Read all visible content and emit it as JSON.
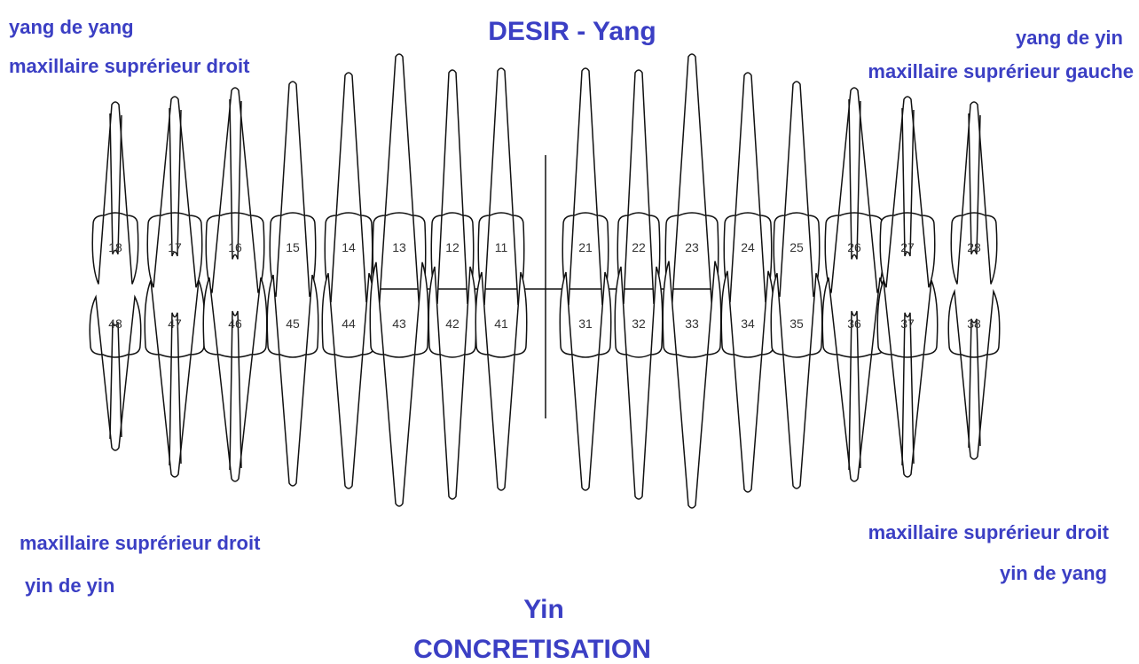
{
  "title": "DESIR - Yang",
  "top_left": [
    "yang de yang",
    "maxillaire suprérieur droit"
  ],
  "top_right": [
    "yang de yin",
    "maxillaire suprérieur gauche"
  ],
  "bottom_left": [
    "maxillaire suprérieur droit",
    "yin de yin"
  ],
  "bottom_right": [
    "maxillaire suprérieur droit",
    "yin de yang"
  ],
  "bottom_title": [
    "Yin",
    "CONCRETISATION"
  ],
  "upper_teeth": [
    "18",
    "17",
    "16",
    "15",
    "14",
    "13",
    "12",
    "11",
    "21",
    "22",
    "23",
    "24",
    "25",
    "26",
    "27",
    "28"
  ],
  "lower_teeth": [
    "48",
    "47",
    "46",
    "45",
    "44",
    "43",
    "42",
    "41",
    "31",
    "32",
    "33",
    "34",
    "35",
    "36",
    "37",
    "38"
  ]
}
